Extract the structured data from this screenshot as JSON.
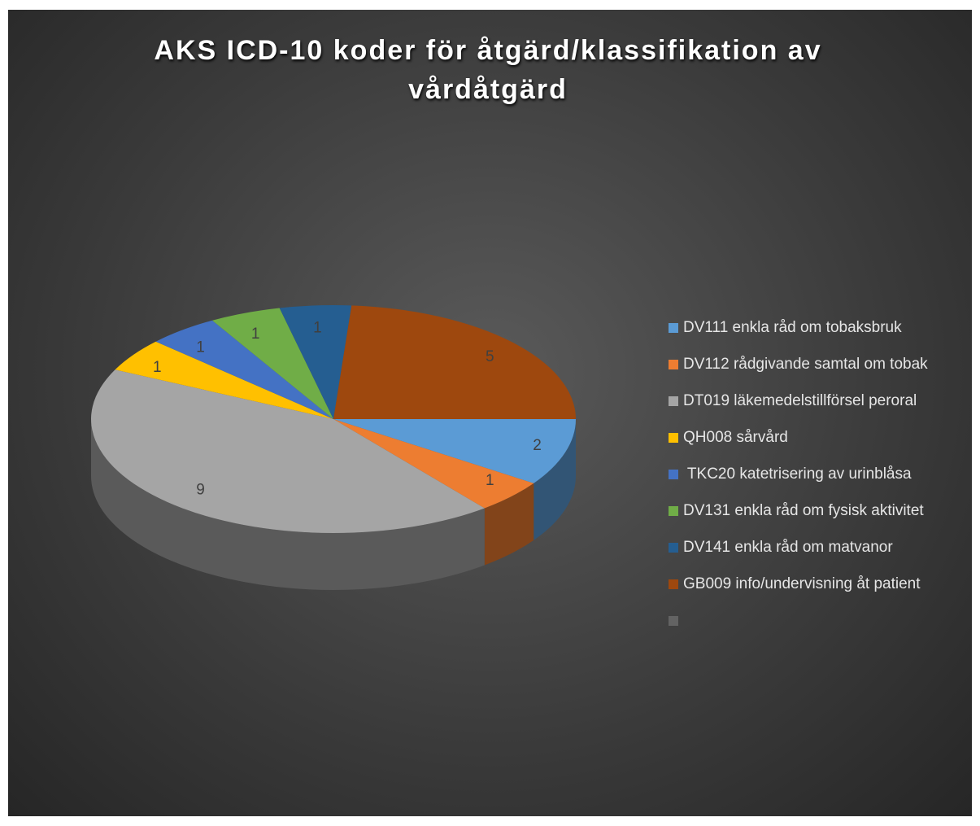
{
  "chart_data": {
    "type": "pie3d",
    "title": "AKS ICD-10 koder för åtgärd/klassifikation av vårdåtgärd",
    "categories": [
      "DV111 enkla råd om tobaksbruk",
      "DV112 rådgivande samtal om tobak",
      "DT019 läkemedelstillförsel peroral",
      "QH008 sårvård",
      " TKC20 katetrisering av urinblåsa",
      "DV131 enkla råd om fysisk aktivitet",
      "DV141 enkla råd om matvanor",
      "GB009 info/undervisning åt patient",
      null
    ],
    "values": [
      2,
      1,
      9,
      1,
      1,
      1,
      1,
      5,
      null
    ],
    "colors": [
      "#5b9bd5",
      "#ed7d31",
      "#a5a5a5",
      "#ffc000",
      "#4472c4",
      "#70ad47",
      "#255e91",
      "#9e480e",
      "#636363"
    ],
    "legend": "right"
  }
}
